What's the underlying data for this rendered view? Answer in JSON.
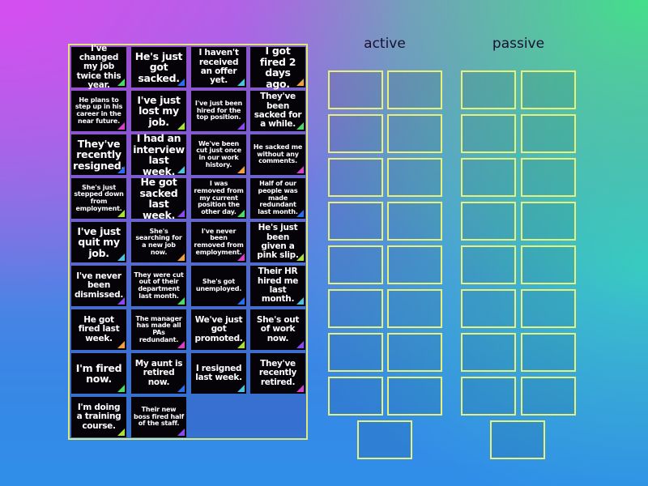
{
  "categories": [
    {
      "label": "active",
      "slots": 17
    },
    {
      "label": "passive",
      "slots": 17
    }
  ],
  "triangle_colors": {
    "green": "#4cd964",
    "blue": "#2a6ef0",
    "cyan": "#4cc3e0",
    "orange": "#f0a040",
    "magenta": "#d640c8",
    "lime": "#a6e23a",
    "purple": "#8a4af0"
  },
  "cards": [
    {
      "text": "I've changed my job twice this year.",
      "color": "green"
    },
    {
      "text": "He's just got sacked.",
      "color": "blue"
    },
    {
      "text": "I haven't received an offer yet.",
      "color": "cyan"
    },
    {
      "text": "I got fired 2 days ago.",
      "color": "orange"
    },
    {
      "text": "He plans to step up in his career in the near future.",
      "color": "magenta"
    },
    {
      "text": "I've just lost my job.",
      "color": "lime"
    },
    {
      "text": "I've just been hired for the top position.",
      "color": "purple"
    },
    {
      "text": "They've been sacked for a while.",
      "color": "green"
    },
    {
      "text": "They've recently resigned.",
      "color": "blue"
    },
    {
      "text": "I had an interview last week.",
      "color": "cyan"
    },
    {
      "text": "We've been cut just once in our work history.",
      "color": "orange"
    },
    {
      "text": "He sacked me without any comments.",
      "color": "magenta"
    },
    {
      "text": "She's just stepped down from employment.",
      "color": "lime"
    },
    {
      "text": "He got sacked last week.",
      "color": "purple"
    },
    {
      "text": "I was removed from my current position the other day.",
      "color": "green"
    },
    {
      "text": "Half of our people was made redundant last month.",
      "color": "blue"
    },
    {
      "text": "I've just quit my job.",
      "color": "cyan"
    },
    {
      "text": "She's searching for a new job now.",
      "color": "orange"
    },
    {
      "text": "I've never been removed from employment.",
      "color": "magenta"
    },
    {
      "text": "He's just been given a pink slip.",
      "color": "lime"
    },
    {
      "text": "I've never been dismissed.",
      "color": "purple"
    },
    {
      "text": "They were cut out of their department last month.",
      "color": "green"
    },
    {
      "text": "She's got unemployed.",
      "color": "blue"
    },
    {
      "text": "Their HR hired me last month.",
      "color": "cyan"
    },
    {
      "text": "He got fired last week.",
      "color": "orange"
    },
    {
      "text": "The manager has made all PAs redundant.",
      "color": "magenta"
    },
    {
      "text": "We've just got promoted.",
      "color": "lime"
    },
    {
      "text": "She's out of work now.",
      "color": "purple"
    },
    {
      "text": "I'm fired now.",
      "color": "green"
    },
    {
      "text": "My aunt is retired now.",
      "color": "blue"
    },
    {
      "text": "I resigned last week.",
      "color": "cyan"
    },
    {
      "text": "They've recently retired.",
      "color": "magenta"
    },
    {
      "text": "I'm doing a training course.",
      "color": "lime"
    },
    {
      "text": "Their new boss fired half of the staff.",
      "color": "purple"
    }
  ]
}
